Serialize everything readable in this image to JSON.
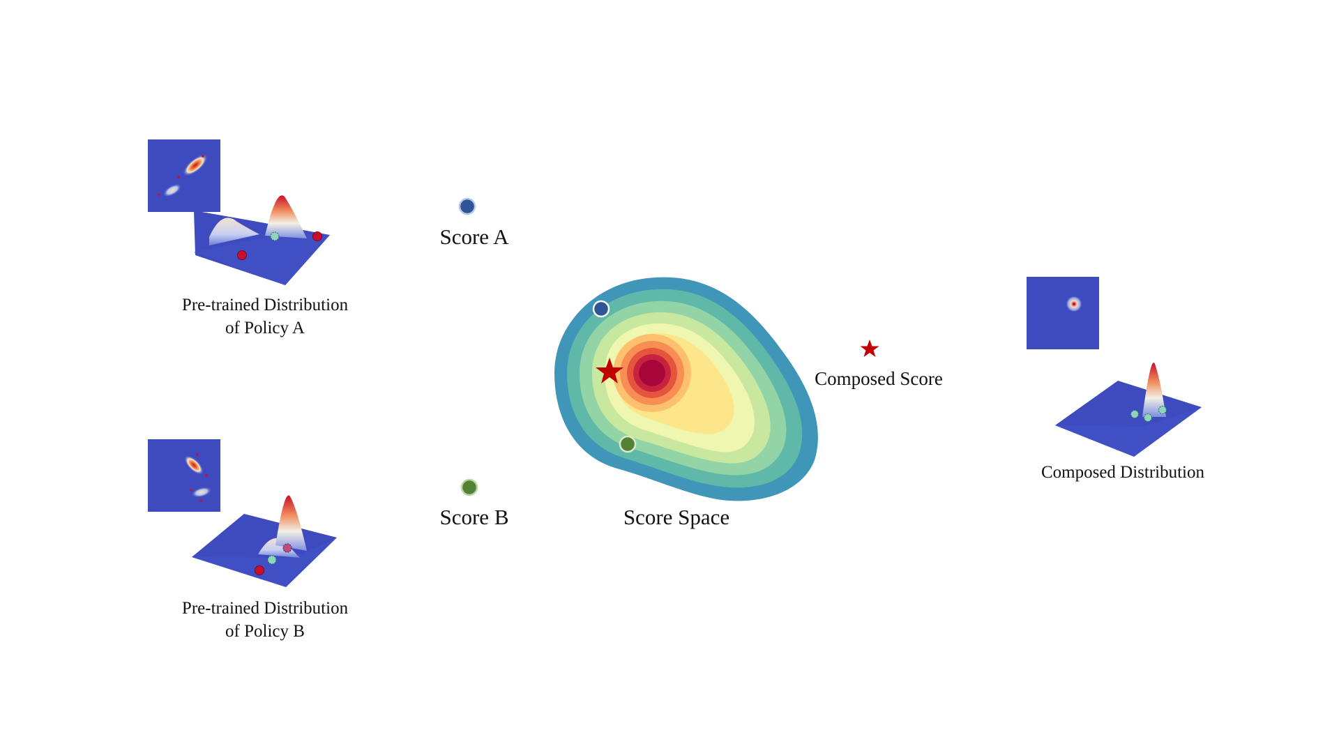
{
  "policy_a": {
    "label_line1": "Pre-trained Distribution",
    "label_line2": "of Policy A"
  },
  "policy_b": {
    "label_line1": "Pre-trained Distribution",
    "label_line2": "of Policy B"
  },
  "score_a": {
    "label": "Score A",
    "color": "#2f5597"
  },
  "score_b": {
    "label": "Score B",
    "color": "#548235"
  },
  "score_space": {
    "label": "Score Space"
  },
  "composed_score": {
    "label": "Composed Score",
    "color": "#c00000"
  },
  "composed_distribution": {
    "label": "Composed Distribution"
  },
  "colors": {
    "heatmap_bg": "#3e4bbf",
    "peak": "#c8102e",
    "contours": [
      "#3f96b8",
      "#5fb8a8",
      "#92d4a5",
      "#c8e8a0",
      "#eef6b0",
      "#fde68a",
      "#fcc06e",
      "#f78f55",
      "#e5553d",
      "#c7233f",
      "#a8063a"
    ]
  }
}
